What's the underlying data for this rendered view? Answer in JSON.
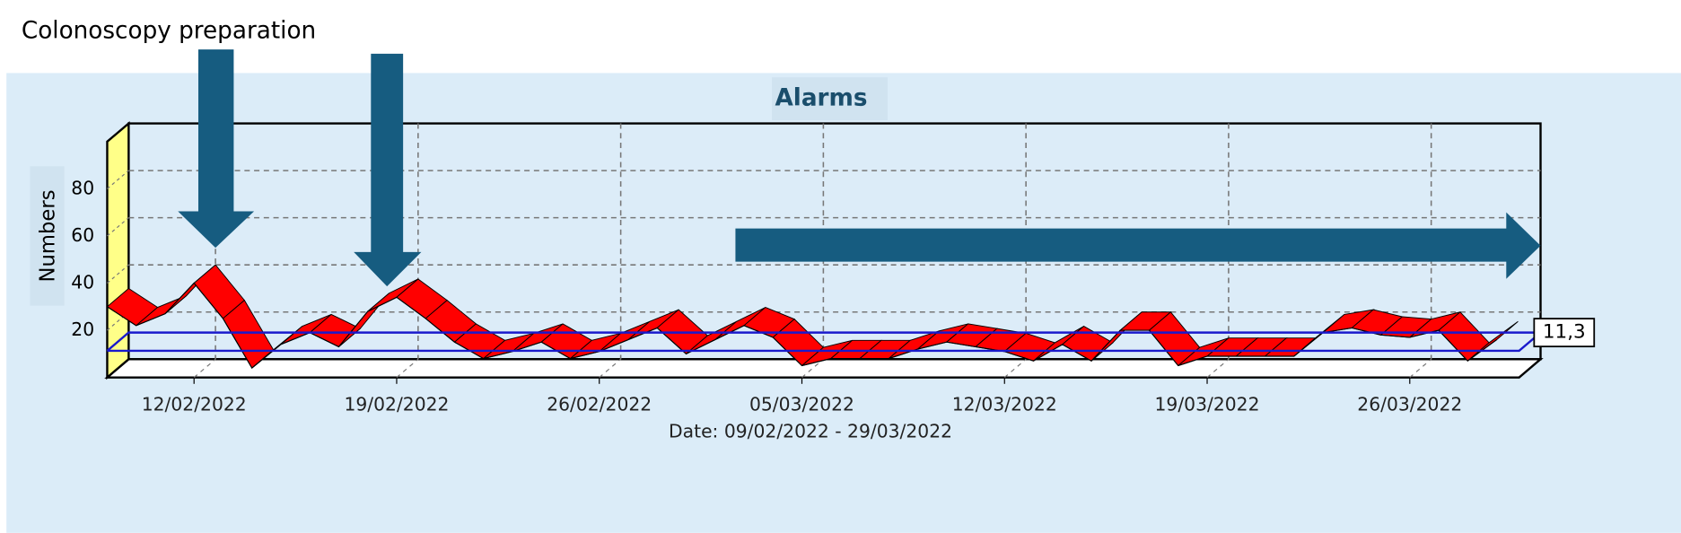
{
  "chart_data": {
    "type": "line",
    "title": "Alarms",
    "annotations": [
      "Colonoscopy preparation"
    ],
    "y_label": "Numbers",
    "x_label": "Date: 09/02/2022 - 29/03/2022",
    "x": [
      "09/02/2022",
      "10/02/2022",
      "11/02/2022",
      "12/02/2022",
      "13/02/2022",
      "14/02/2022",
      "15/02/2022",
      "16/02/2022",
      "17/02/2022",
      "18/02/2022",
      "19/02/2022",
      "20/02/2022",
      "21/02/2022",
      "22/02/2022",
      "23/02/2022",
      "24/02/2022",
      "25/02/2022",
      "26/02/2022",
      "27/02/2022",
      "28/02/2022",
      "01/03/2022",
      "02/03/2022",
      "03/03/2022",
      "04/03/2022",
      "05/03/2022",
      "06/03/2022",
      "07/03/2022",
      "08/03/2022",
      "09/03/2022",
      "10/03/2022",
      "11/03/2022",
      "12/03/2022",
      "13/03/2022",
      "14/03/2022",
      "15/03/2022",
      "16/03/2022",
      "17/03/2022",
      "18/03/2022",
      "19/03/2022",
      "20/03/2022",
      "21/03/2022",
      "22/03/2022",
      "23/03/2022",
      "24/03/2022",
      "25/03/2022",
      "26/03/2022",
      "27/03/2022",
      "28/03/2022",
      "29/03/2022"
    ],
    "xticks": [
      "12/02/2022",
      "19/02/2022",
      "26/02/2022",
      "05/03/2022",
      "12/03/2022",
      "19/03/2022",
      "26/03/2022"
    ],
    "ylim": [
      0,
      100
    ],
    "yticks": [
      20,
      40,
      60,
      80
    ],
    "grid": true,
    "series": [
      {
        "color": "#ff0000",
        "values": [
          30,
          22,
          27,
          40,
          25,
          4,
          14,
          19,
          13,
          28,
          34,
          25,
          15,
          8,
          11,
          15,
          8,
          11,
          16,
          21,
          10,
          16,
          22,
          17,
          5,
          8,
          8,
          8,
          12,
          15,
          13,
          11,
          7,
          14,
          7,
          20,
          20,
          5,
          9,
          9,
          9,
          9,
          19,
          21,
          18,
          17,
          20,
          7,
          16
        ]
      }
    ],
    "reference_line": {
      "value": 11.3,
      "label": "11,3",
      "color": "#1a1acc"
    }
  }
}
